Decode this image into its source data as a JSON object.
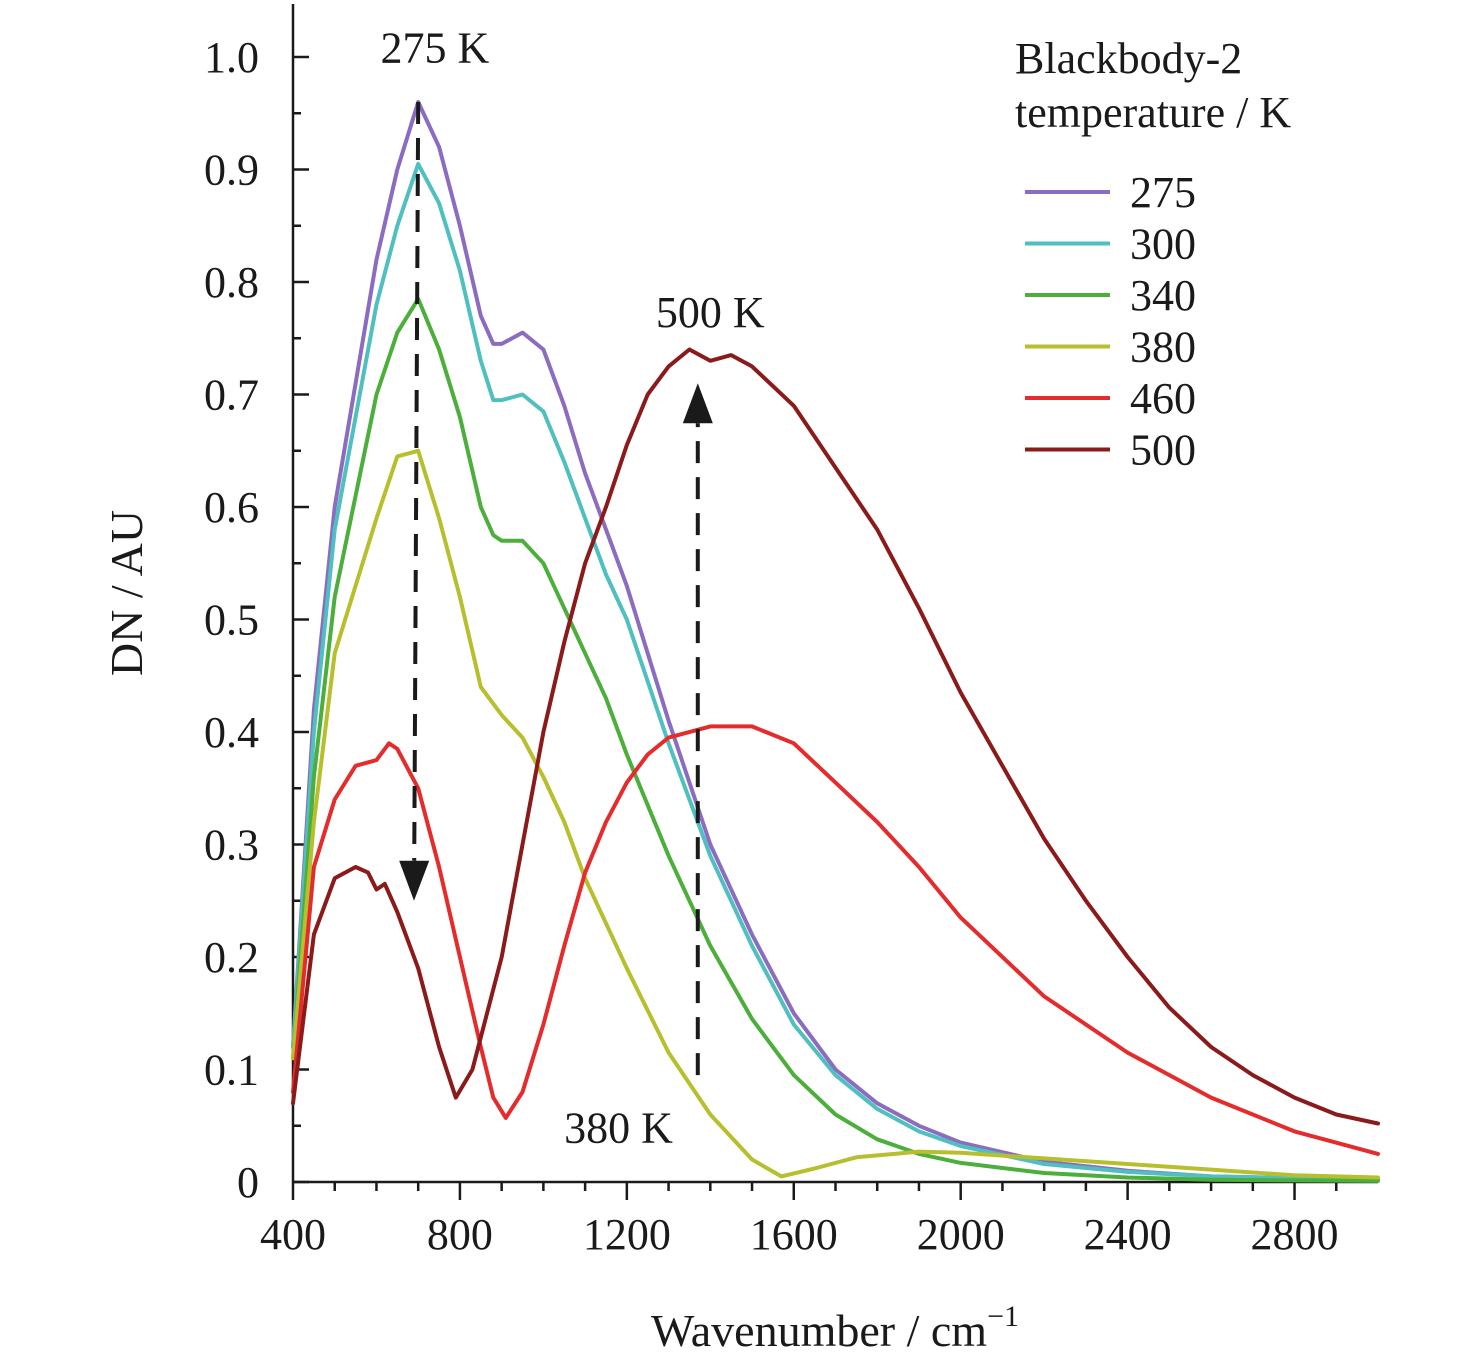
{
  "chart_data": {
    "type": "line",
    "xlabel": "Wavenumber / cm",
    "xlabel_sup": "−1",
    "ylabel": "DN / AU",
    "xlim": [
      400,
      3000
    ],
    "ylim": [
      0,
      1.0
    ],
    "x_ticks": [
      400,
      800,
      1200,
      1600,
      2000,
      2400,
      2800
    ],
    "x_tick_labels": [
      "400",
      "800",
      "1200",
      "1600",
      "2000",
      "2400",
      "2800"
    ],
    "y_ticks": [
      0,
      0.1,
      0.2,
      0.3,
      0.4,
      0.5,
      0.6,
      0.7,
      0.8,
      0.9,
      1.0
    ],
    "y_tick_labels": [
      "0",
      "0.1",
      "0.2",
      "0.3",
      "0.4",
      "0.5",
      "0.6",
      "0.7",
      "0.8",
      "0.9",
      "1.0"
    ],
    "grid": false,
    "legend": {
      "placement": "top-right",
      "title_lines": [
        "Blackbody-2",
        "temperature / K"
      ]
    },
    "annotations": [
      {
        "text": "275 K",
        "x": 740,
        "y": 0.995
      },
      {
        "text": "500 K",
        "x": 1400,
        "y": 0.76
      },
      {
        "text": "380 K",
        "x": 1180,
        "y": 0.035
      }
    ],
    "arrows": [
      {
        "from": [
          700,
          0.96
        ],
        "to": [
          690,
          0.25
        ]
      },
      {
        "from": [
          1370,
          0.095
        ],
        "to": [
          1370,
          0.71
        ]
      }
    ],
    "series": [
      {
        "name": "275",
        "color": "#8b6cc0",
        "points": [
          [
            400,
            0.12
          ],
          [
            450,
            0.42
          ],
          [
            500,
            0.6
          ],
          [
            550,
            0.71
          ],
          [
            600,
            0.82
          ],
          [
            650,
            0.9
          ],
          [
            700,
            0.96
          ],
          [
            750,
            0.92
          ],
          [
            800,
            0.85
          ],
          [
            850,
            0.77
          ],
          [
            880,
            0.745
          ],
          [
            900,
            0.745
          ],
          [
            950,
            0.755
          ],
          [
            1000,
            0.74
          ],
          [
            1050,
            0.69
          ],
          [
            1100,
            0.63
          ],
          [
            1150,
            0.58
          ],
          [
            1200,
            0.53
          ],
          [
            1300,
            0.41
          ],
          [
            1400,
            0.3
          ],
          [
            1500,
            0.22
          ],
          [
            1600,
            0.15
          ],
          [
            1700,
            0.1
          ],
          [
            1800,
            0.07
          ],
          [
            1900,
            0.05
          ],
          [
            2000,
            0.035
          ],
          [
            2200,
            0.018
          ],
          [
            2400,
            0.01
          ],
          [
            2600,
            0.005
          ],
          [
            3000,
            0.002
          ]
        ]
      },
      {
        "name": "300",
        "color": "#4fbfbf",
        "points": [
          [
            400,
            0.12
          ],
          [
            450,
            0.4
          ],
          [
            500,
            0.58
          ],
          [
            550,
            0.68
          ],
          [
            600,
            0.78
          ],
          [
            650,
            0.85
          ],
          [
            700,
            0.905
          ],
          [
            750,
            0.87
          ],
          [
            800,
            0.81
          ],
          [
            850,
            0.73
          ],
          [
            880,
            0.695
          ],
          [
            900,
            0.695
          ],
          [
            950,
            0.7
          ],
          [
            1000,
            0.685
          ],
          [
            1050,
            0.64
          ],
          [
            1100,
            0.59
          ],
          [
            1150,
            0.54
          ],
          [
            1200,
            0.5
          ],
          [
            1300,
            0.39
          ],
          [
            1400,
            0.29
          ],
          [
            1500,
            0.21
          ],
          [
            1600,
            0.14
          ],
          [
            1700,
            0.095
          ],
          [
            1800,
            0.065
          ],
          [
            1900,
            0.045
          ],
          [
            2000,
            0.032
          ],
          [
            2200,
            0.016
          ],
          [
            2400,
            0.009
          ],
          [
            2600,
            0.005
          ],
          [
            3000,
            0.002
          ]
        ]
      },
      {
        "name": "340",
        "color": "#4caf3c",
        "points": [
          [
            400,
            0.11
          ],
          [
            450,
            0.36
          ],
          [
            500,
            0.52
          ],
          [
            550,
            0.61
          ],
          [
            600,
            0.7
          ],
          [
            650,
            0.755
          ],
          [
            700,
            0.785
          ],
          [
            750,
            0.74
          ],
          [
            800,
            0.68
          ],
          [
            850,
            0.6
          ],
          [
            880,
            0.575
          ],
          [
            900,
            0.57
          ],
          [
            950,
            0.57
          ],
          [
            1000,
            0.55
          ],
          [
            1050,
            0.51
          ],
          [
            1100,
            0.47
          ],
          [
            1150,
            0.43
          ],
          [
            1200,
            0.38
          ],
          [
            1300,
            0.29
          ],
          [
            1400,
            0.21
          ],
          [
            1500,
            0.145
          ],
          [
            1600,
            0.095
          ],
          [
            1700,
            0.06
          ],
          [
            1800,
            0.038
          ],
          [
            1900,
            0.025
          ],
          [
            2000,
            0.017
          ],
          [
            2200,
            0.008
          ],
          [
            2400,
            0.004
          ],
          [
            2600,
            0.002
          ],
          [
            3000,
            0.001
          ]
        ]
      },
      {
        "name": "380",
        "color": "#b8bf2e",
        "points": [
          [
            400,
            0.11
          ],
          [
            450,
            0.32
          ],
          [
            500,
            0.47
          ],
          [
            550,
            0.53
          ],
          [
            600,
            0.59
          ],
          [
            650,
            0.645
          ],
          [
            700,
            0.65
          ],
          [
            750,
            0.59
          ],
          [
            800,
            0.52
          ],
          [
            850,
            0.44
          ],
          [
            900,
            0.415
          ],
          [
            950,
            0.395
          ],
          [
            1000,
            0.36
          ],
          [
            1050,
            0.32
          ],
          [
            1100,
            0.27
          ],
          [
            1150,
            0.23
          ],
          [
            1200,
            0.19
          ],
          [
            1300,
            0.115
          ],
          [
            1400,
            0.06
          ],
          [
            1500,
            0.02
          ],
          [
            1570,
            0.005
          ],
          [
            1650,
            0.012
          ],
          [
            1750,
            0.022
          ],
          [
            1900,
            0.027
          ],
          [
            2000,
            0.026
          ],
          [
            2200,
            0.021
          ],
          [
            2400,
            0.016
          ],
          [
            2600,
            0.011
          ],
          [
            2800,
            0.006
          ],
          [
            3000,
            0.004
          ]
        ]
      },
      {
        "name": "460",
        "color": "#e52c2c",
        "points": [
          [
            400,
            0.08
          ],
          [
            450,
            0.28
          ],
          [
            500,
            0.34
          ],
          [
            550,
            0.37
          ],
          [
            600,
            0.375
          ],
          [
            630,
            0.39
          ],
          [
            650,
            0.385
          ],
          [
            700,
            0.35
          ],
          [
            750,
            0.28
          ],
          [
            800,
            0.2
          ],
          [
            850,
            0.12
          ],
          [
            880,
            0.075
          ],
          [
            910,
            0.057
          ],
          [
            950,
            0.08
          ],
          [
            1000,
            0.14
          ],
          [
            1050,
            0.21
          ],
          [
            1100,
            0.275
          ],
          [
            1150,
            0.32
          ],
          [
            1200,
            0.355
          ],
          [
            1250,
            0.38
          ],
          [
            1300,
            0.395
          ],
          [
            1400,
            0.405
          ],
          [
            1500,
            0.405
          ],
          [
            1600,
            0.39
          ],
          [
            1700,
            0.355
          ],
          [
            1800,
            0.32
          ],
          [
            1900,
            0.28
          ],
          [
            2000,
            0.235
          ],
          [
            2200,
            0.165
          ],
          [
            2400,
            0.115
          ],
          [
            2600,
            0.075
          ],
          [
            2800,
            0.045
          ],
          [
            3000,
            0.025
          ]
        ]
      },
      {
        "name": "500",
        "color": "#8b1a1a",
        "points": [
          [
            400,
            0.07
          ],
          [
            450,
            0.22
          ],
          [
            500,
            0.27
          ],
          [
            550,
            0.28
          ],
          [
            580,
            0.275
          ],
          [
            600,
            0.26
          ],
          [
            620,
            0.265
          ],
          [
            650,
            0.24
          ],
          [
            700,
            0.19
          ],
          [
            750,
            0.12
          ],
          [
            790,
            0.075
          ],
          [
            830,
            0.1
          ],
          [
            900,
            0.2
          ],
          [
            950,
            0.3
          ],
          [
            1000,
            0.4
          ],
          [
            1050,
            0.48
          ],
          [
            1100,
            0.55
          ],
          [
            1150,
            0.6
          ],
          [
            1200,
            0.655
          ],
          [
            1250,
            0.7
          ],
          [
            1300,
            0.725
          ],
          [
            1350,
            0.74
          ],
          [
            1400,
            0.73
          ],
          [
            1450,
            0.735
          ],
          [
            1500,
            0.725
          ],
          [
            1600,
            0.69
          ],
          [
            1700,
            0.635
          ],
          [
            1800,
            0.58
          ],
          [
            1900,
            0.51
          ],
          [
            2000,
            0.435
          ],
          [
            2100,
            0.37
          ],
          [
            2200,
            0.305
          ],
          [
            2300,
            0.25
          ],
          [
            2400,
            0.2
          ],
          [
            2500,
            0.155
          ],
          [
            2600,
            0.12
          ],
          [
            2700,
            0.095
          ],
          [
            2800,
            0.075
          ],
          [
            2900,
            0.06
          ],
          [
            3000,
            0.052
          ]
        ]
      }
    ]
  }
}
